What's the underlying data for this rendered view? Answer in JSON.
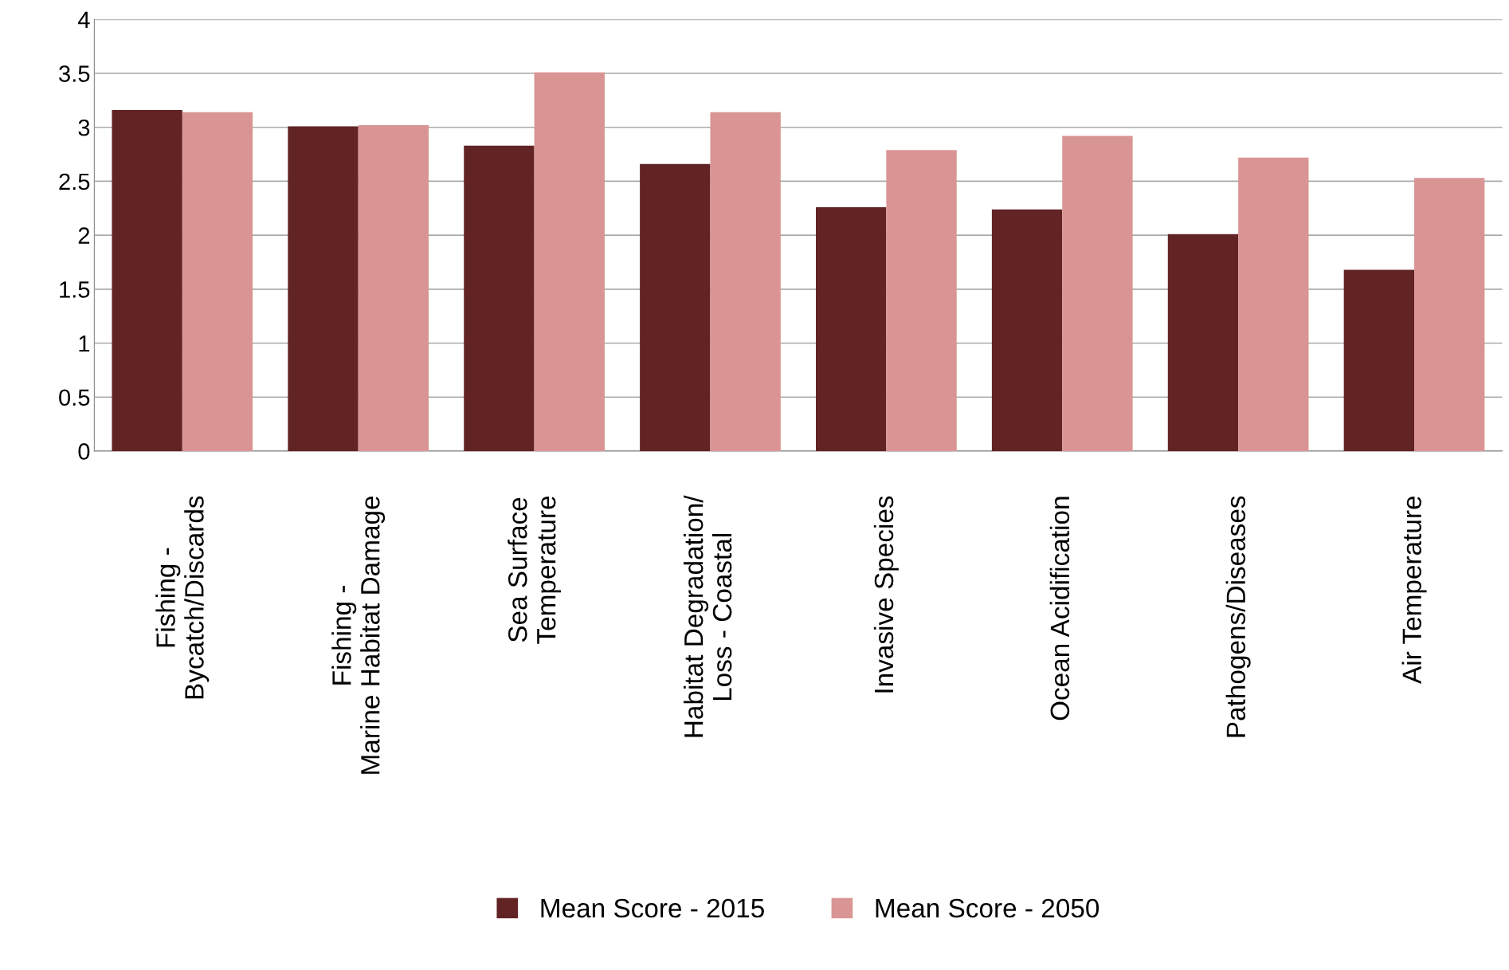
{
  "chart_data": {
    "type": "bar",
    "categories": [
      "Fishing -\nBycatch/Discards",
      "Fishing -\nMarine Habitat Damage",
      "Sea Surface\nTemperature",
      "Habitat Degradation/\nLoss - Coastal",
      "Invasive Species",
      "Ocean Acidification",
      "Pathogens/Diseases",
      "Air Temperature"
    ],
    "series": [
      {
        "name": "Mean Score - 2015",
        "color": "#622324",
        "values": [
          3.16,
          3.01,
          2.83,
          2.66,
          2.26,
          2.24,
          2.01,
          1.68
        ]
      },
      {
        "name": "Mean Score - 2050",
        "color": "#d99594",
        "values": [
          3.14,
          3.02,
          3.51,
          3.14,
          2.79,
          2.92,
          2.72,
          2.53
        ]
      }
    ],
    "ylim": [
      0,
      4
    ],
    "yticks": [
      0,
      0.5,
      1,
      1.5,
      2,
      2.5,
      3,
      3.5,
      4
    ],
    "grid": "y",
    "legend": "bottom"
  }
}
